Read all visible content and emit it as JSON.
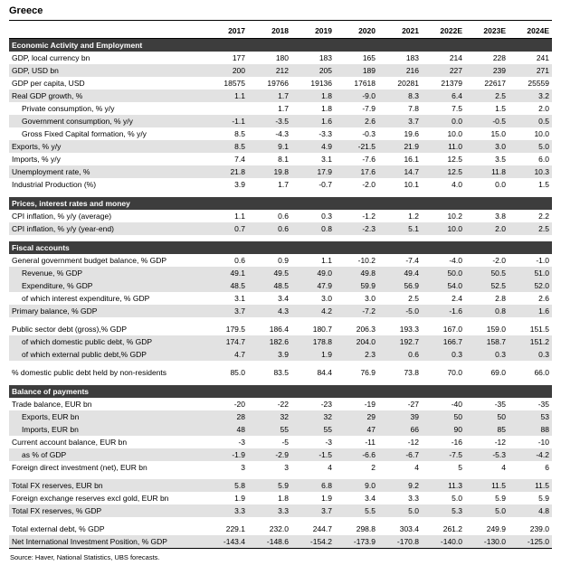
{
  "title": "Greece",
  "source": "Source: Haver, National Statistics, UBS forecasts.",
  "columns": [
    "2017",
    "2018",
    "2019",
    "2020",
    "2021",
    "2022E",
    "2023E",
    "2024E"
  ],
  "sections": [
    {
      "header": "Economic Activity and Employment",
      "rows": [
        {
          "label": "GDP, local currency bn",
          "values": [
            "177",
            "180",
            "183",
            "165",
            "183",
            "214",
            "228",
            "241"
          ]
        },
        {
          "label": "GDP, USD bn",
          "shaded": true,
          "values": [
            "200",
            "212",
            "205",
            "189",
            "216",
            "227",
            "239",
            "271"
          ]
        },
        {
          "label": "GDP per capita, USD",
          "values": [
            "18575",
            "19766",
            "19136",
            "17618",
            "20281",
            "21379",
            "22617",
            "25559"
          ]
        },
        {
          "label": "Real GDP growth, %",
          "shaded": true,
          "values": [
            "1.1",
            "1.7",
            "1.8",
            "-9.0",
            "8.3",
            "6.4",
            "2.5",
            "3.2"
          ]
        },
        {
          "label": "Private consumption, % y/y",
          "indent": true,
          "values": [
            "",
            "1.7",
            "1.8",
            "-7.9",
            "7.8",
            "7.5",
            "1.5",
            "2.0"
          ]
        },
        {
          "label": "Government consumption, % y/y",
          "indent": true,
          "shaded": true,
          "values": [
            "-1.1",
            "-3.5",
            "1.6",
            "2.6",
            "3.7",
            "0.0",
            "-0.5",
            "0.5"
          ]
        },
        {
          "label": "Gross Fixed Capital formation, % y/y",
          "indent": true,
          "values": [
            "8.5",
            "-4.3",
            "-3.3",
            "-0.3",
            "19.6",
            "10.0",
            "15.0",
            "10.0"
          ]
        },
        {
          "label": "Exports, % y/y",
          "shaded": true,
          "values": [
            "8.5",
            "9.1",
            "4.9",
            "-21.5",
            "21.9",
            "11.0",
            "3.0",
            "5.0"
          ]
        },
        {
          "label": "Imports, % y/y",
          "values": [
            "7.4",
            "8.1",
            "3.1",
            "-7.6",
            "16.1",
            "12.5",
            "3.5",
            "6.0"
          ]
        },
        {
          "label": "Unemployment rate, %",
          "shaded": true,
          "values": [
            "21.8",
            "19.8",
            "17.9",
            "17.6",
            "14.7",
            "12.5",
            "11.8",
            "10.3"
          ]
        },
        {
          "label": "Industrial Production (%)",
          "values": [
            "3.9",
            "1.7",
            "-0.7",
            "-2.0",
            "10.1",
            "4.0",
            "0.0",
            "1.5"
          ]
        }
      ]
    },
    {
      "header": "Prices, interest rates and money",
      "rows": [
        {
          "label": "CPI inflation, % y/y (average)",
          "values": [
            "1.1",
            "0.6",
            "0.3",
            "-1.2",
            "1.2",
            "10.2",
            "3.8",
            "2.2"
          ]
        },
        {
          "label": "CPI inflation, % y/y (year-end)",
          "shaded": true,
          "values": [
            "0.7",
            "0.6",
            "0.8",
            "-2.3",
            "5.1",
            "10.0",
            "2.0",
            "2.5"
          ]
        }
      ]
    },
    {
      "header": "Fiscal accounts",
      "rows": [
        {
          "label": "General government budget balance, % GDP",
          "values": [
            "0.6",
            "0.9",
            "1.1",
            "-10.2",
            "-7.4",
            "-4.0",
            "-2.0",
            "-1.0"
          ]
        },
        {
          "label": "Revenue, % GDP",
          "indent": true,
          "shaded": true,
          "values": [
            "49.1",
            "49.5",
            "49.0",
            "49.8",
            "49.4",
            "50.0",
            "50.5",
            "51.0"
          ]
        },
        {
          "label": "Expenditure, % GDP",
          "indent": true,
          "shaded": true,
          "values": [
            "48.5",
            "48.5",
            "47.9",
            "59.9",
            "56.9",
            "54.0",
            "52.5",
            "52.0"
          ]
        },
        {
          "label": "of which interest expenditure, % GDP",
          "indent": true,
          "values": [
            "3.1",
            "3.4",
            "3.0",
            "3.0",
            "2.5",
            "2.4",
            "2.8",
            "2.6"
          ]
        },
        {
          "label": "Primary balance, % GDP",
          "shaded": true,
          "values": [
            "3.7",
            "4.3",
            "4.2",
            "-7.2",
            "-5.0",
            "-1.6",
            "0.8",
            "1.6"
          ]
        },
        {
          "label": "Public sector debt (gross),% GDP",
          "gap": true,
          "values": [
            "179.5",
            "186.4",
            "180.7",
            "206.3",
            "193.3",
            "167.0",
            "159.0",
            "151.5"
          ]
        },
        {
          "label": "of which domestic public debt, % GDP",
          "indent": true,
          "shaded": true,
          "values": [
            "174.7",
            "182.6",
            "178.8",
            "204.0",
            "192.7",
            "166.7",
            "158.7",
            "151.2"
          ]
        },
        {
          "label": "of which external public debt,% GDP",
          "indent": true,
          "shaded": true,
          "values": [
            "4.7",
            "3.9",
            "1.9",
            "2.3",
            "0.6",
            "0.3",
            "0.3",
            "0.3"
          ]
        },
        {
          "label": "% domestic public debt held by non-residents",
          "gap": true,
          "values": [
            "85.0",
            "83.5",
            "84.4",
            "76.9",
            "73.8",
            "70.0",
            "69.0",
            "66.0"
          ]
        }
      ]
    },
    {
      "header": "Balance of payments",
      "rows": [
        {
          "label": "Trade balance, EUR bn",
          "values": [
            "-20",
            "-22",
            "-23",
            "-19",
            "-27",
            "-40",
            "-35",
            "-35"
          ]
        },
        {
          "label": "Exports, EUR bn",
          "indent": true,
          "shaded": true,
          "values": [
            "28",
            "32",
            "32",
            "29",
            "39",
            "50",
            "50",
            "53"
          ]
        },
        {
          "label": "Imports, EUR bn",
          "indent": true,
          "shaded": true,
          "values": [
            "48",
            "55",
            "55",
            "47",
            "66",
            "90",
            "85",
            "88"
          ]
        },
        {
          "label": "Current account balance, EUR bn",
          "values": [
            "-3",
            "-5",
            "-3",
            "-11",
            "-12",
            "-16",
            "-12",
            "-10"
          ]
        },
        {
          "label": "as % of GDP",
          "indent": true,
          "shaded": true,
          "values": [
            "-1.9",
            "-2.9",
            "-1.5",
            "-6.6",
            "-6.7",
            "-7.5",
            "-5.3",
            "-4.2"
          ]
        },
        {
          "label": "Foreign direct investment (net), EUR bn",
          "values": [
            "3",
            "3",
            "4",
            "2",
            "4",
            "5",
            "4",
            "6"
          ]
        },
        {
          "label": "Total FX reserves, EUR bn",
          "gap": true,
          "shaded": true,
          "values": [
            "5.8",
            "5.9",
            "6.8",
            "9.0",
            "9.2",
            "11.3",
            "11.5",
            "11.5"
          ]
        },
        {
          "label": "Foreign exchange reserves excl gold, EUR bn",
          "values": [
            "1.9",
            "1.8",
            "1.9",
            "3.4",
            "3.3",
            "5.0",
            "5.9",
            "5.9"
          ]
        },
        {
          "label": "Total FX reserves, % GDP",
          "shaded": true,
          "values": [
            "3.3",
            "3.3",
            "3.7",
            "5.5",
            "5.0",
            "5.3",
            "5.0",
            "4.8"
          ]
        },
        {
          "label": "Total external debt, % GDP",
          "gap": true,
          "values": [
            "229.1",
            "232.0",
            "244.7",
            "298.8",
            "303.4",
            "261.2",
            "249.9",
            "239.0"
          ]
        },
        {
          "label": "Net International Investment Position, % GDP",
          "shaded": true,
          "values": [
            "-143.4",
            "-148.6",
            "-154.2",
            "-173.9",
            "-170.8",
            "-140.0",
            "-130.0",
            "-125.0"
          ]
        }
      ]
    }
  ]
}
